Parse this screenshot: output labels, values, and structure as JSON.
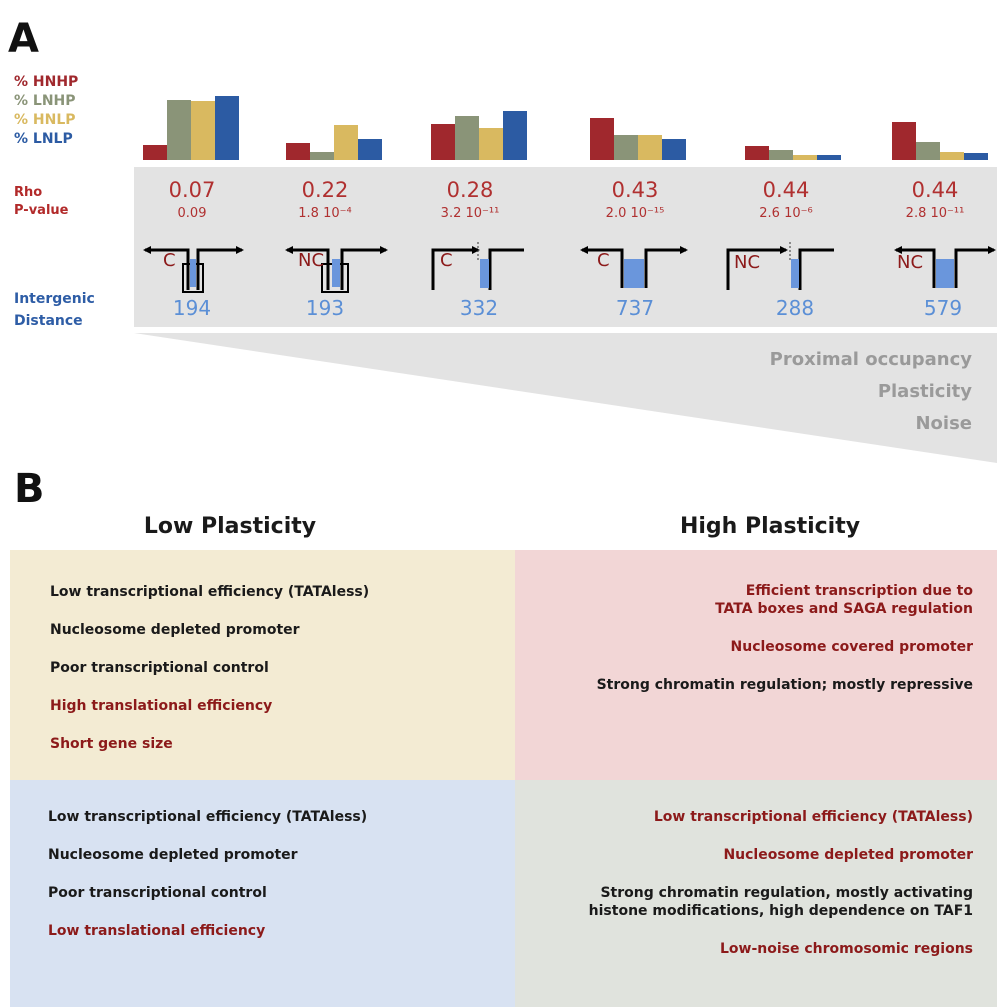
{
  "panel_a": {
    "letter": "A",
    "legend": [
      {
        "label": "% HNHP",
        "color": "#a0282d"
      },
      {
        "label": "% LNHP",
        "color": "#8a9478"
      },
      {
        "label": "% HNLP",
        "color": "#d9b960"
      },
      {
        "label": "% LNLP",
        "color": "#2c5ba3"
      }
    ],
    "rho_label": "Rho",
    "pvalue_label": "P-value",
    "intergenic_label_1": "Intergenic",
    "intergenic_label_2": "Distance",
    "trend_labels": [
      "Proximal occupancy",
      "Plasticity",
      "Noise"
    ],
    "columns": [
      {
        "rho": "0.07",
        "pvalue": "0.09",
        "distance": "194",
        "type": "C"
      },
      {
        "rho": "0.22",
        "pvalue": "1.8 10⁻⁴",
        "distance": "193",
        "type": "NC"
      },
      {
        "rho": "0.28",
        "pvalue": "3.2 10⁻¹¹",
        "distance": "332",
        "type": "C"
      },
      {
        "rho": "0.43",
        "pvalue": "2.0 10⁻¹⁵",
        "distance": "737",
        "type": "C"
      },
      {
        "rho": "0.44",
        "pvalue": "2.6 10⁻⁶",
        "distance": "288",
        "type": "NC"
      },
      {
        "rho": "0.44",
        "pvalue": "2.8 10⁻¹¹",
        "distance": "579",
        "type": "NC"
      }
    ]
  },
  "chart_data": {
    "type": "bar",
    "categories": [
      "194",
      "193",
      "332",
      "737",
      "288",
      "579"
    ],
    "series": [
      {
        "name": "% HNHP",
        "values": [
          15,
          17,
          36,
          42,
          14,
          38
        ]
      },
      {
        "name": "% LNHP",
        "values": [
          60,
          8,
          44,
          25,
          10,
          18
        ]
      },
      {
        "name": "% HNLP",
        "values": [
          59,
          35,
          32,
          25,
          5,
          8
        ]
      },
      {
        "name": "% LNLP",
        "values": [
          64,
          21,
          49,
          21,
          5,
          7
        ]
      }
    ],
    "ylim": [
      0,
      64
    ],
    "title": "",
    "xlabel": "",
    "ylabel": ""
  },
  "panel_b": {
    "letter": "B",
    "low_title": "Low Plasticity",
    "high_title": "High Plasticity",
    "quadrants": {
      "top_left": {
        "color": "#f3ebd3",
        "items": [
          {
            "text": "Low transcriptional efficiency (TATAless)",
            "tone": "dark"
          },
          {
            "text": "Nucleosome depleted promoter",
            "tone": "dark"
          },
          {
            "text": "Poor transcriptional control",
            "tone": "dark"
          },
          {
            "text": "High translational efficiency",
            "tone": "red"
          },
          {
            "text": "Short gene size",
            "tone": "red"
          }
        ]
      },
      "top_right": {
        "color": "#f2d6d6",
        "items": [
          {
            "text": "Efficient transcription due to\nTATA boxes and SAGA regulation",
            "tone": "red"
          },
          {
            "text": "Nucleosome covered promoter",
            "tone": "red"
          },
          {
            "text": "Strong chromatin regulation; mostly repressive",
            "tone": "dark"
          }
        ]
      },
      "bottom_left": {
        "color": "#d8e2f2",
        "items": [
          {
            "text": "Low transcriptional efficiency (TATAless)",
            "tone": "dark"
          },
          {
            "text": "Nucleosome depleted promoter",
            "tone": "dark"
          },
          {
            "text": "Poor transcriptional control",
            "tone": "dark"
          },
          {
            "text": "Low translational efficiency",
            "tone": "red"
          }
        ]
      },
      "bottom_right": {
        "color": "#e0e3dd",
        "items": [
          {
            "text": "Low transcriptional efficiency (TATAless)",
            "tone": "red"
          },
          {
            "text": "Nucleosome depleted promoter",
            "tone": "red"
          },
          {
            "text": "Strong chromatin regulation, mostly activating\nhistone modifications, high dependence on TAF1",
            "tone": "dark"
          },
          {
            "text": "Low-noise chromosomic regions",
            "tone": "red"
          }
        ]
      }
    }
  }
}
